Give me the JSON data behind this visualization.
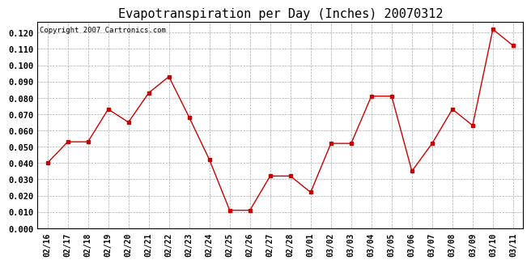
{
  "title": "Evapotranspiration per Day (Inches) 20070312",
  "copyright_text": "Copyright 2007 Cartronics.com",
  "labels": [
    "02/16",
    "02/17",
    "02/18",
    "02/19",
    "02/20",
    "02/21",
    "02/22",
    "02/23",
    "02/24",
    "02/25",
    "02/26",
    "02/27",
    "02/28",
    "03/01",
    "03/02",
    "03/03",
    "03/04",
    "03/05",
    "03/06",
    "03/07",
    "03/08",
    "03/09",
    "03/10",
    "03/11"
  ],
  "values": [
    0.04,
    0.053,
    0.053,
    0.073,
    0.065,
    0.083,
    0.093,
    0.068,
    0.042,
    0.011,
    0.011,
    0.032,
    0.032,
    0.022,
    0.052,
    0.052,
    0.081,
    0.081,
    0.035,
    0.052,
    0.073,
    0.063,
    0.122,
    0.112
  ],
  "line_color": "#cc0000",
  "marker": "s",
  "marker_size": 3,
  "ylim": [
    0.0,
    0.1267
  ],
  "yticks": [
    0.0,
    0.01,
    0.02,
    0.03,
    0.04,
    0.05,
    0.06,
    0.07,
    0.08,
    0.09,
    0.1,
    0.11,
    0.12
  ],
  "grid_color": "#aaaaaa",
  "bg_color": "#ffffff",
  "title_fontsize": 11,
  "copyright_fontsize": 6.5,
  "tick_fontsize": 7.5,
  "xtick_fontsize": 7
}
